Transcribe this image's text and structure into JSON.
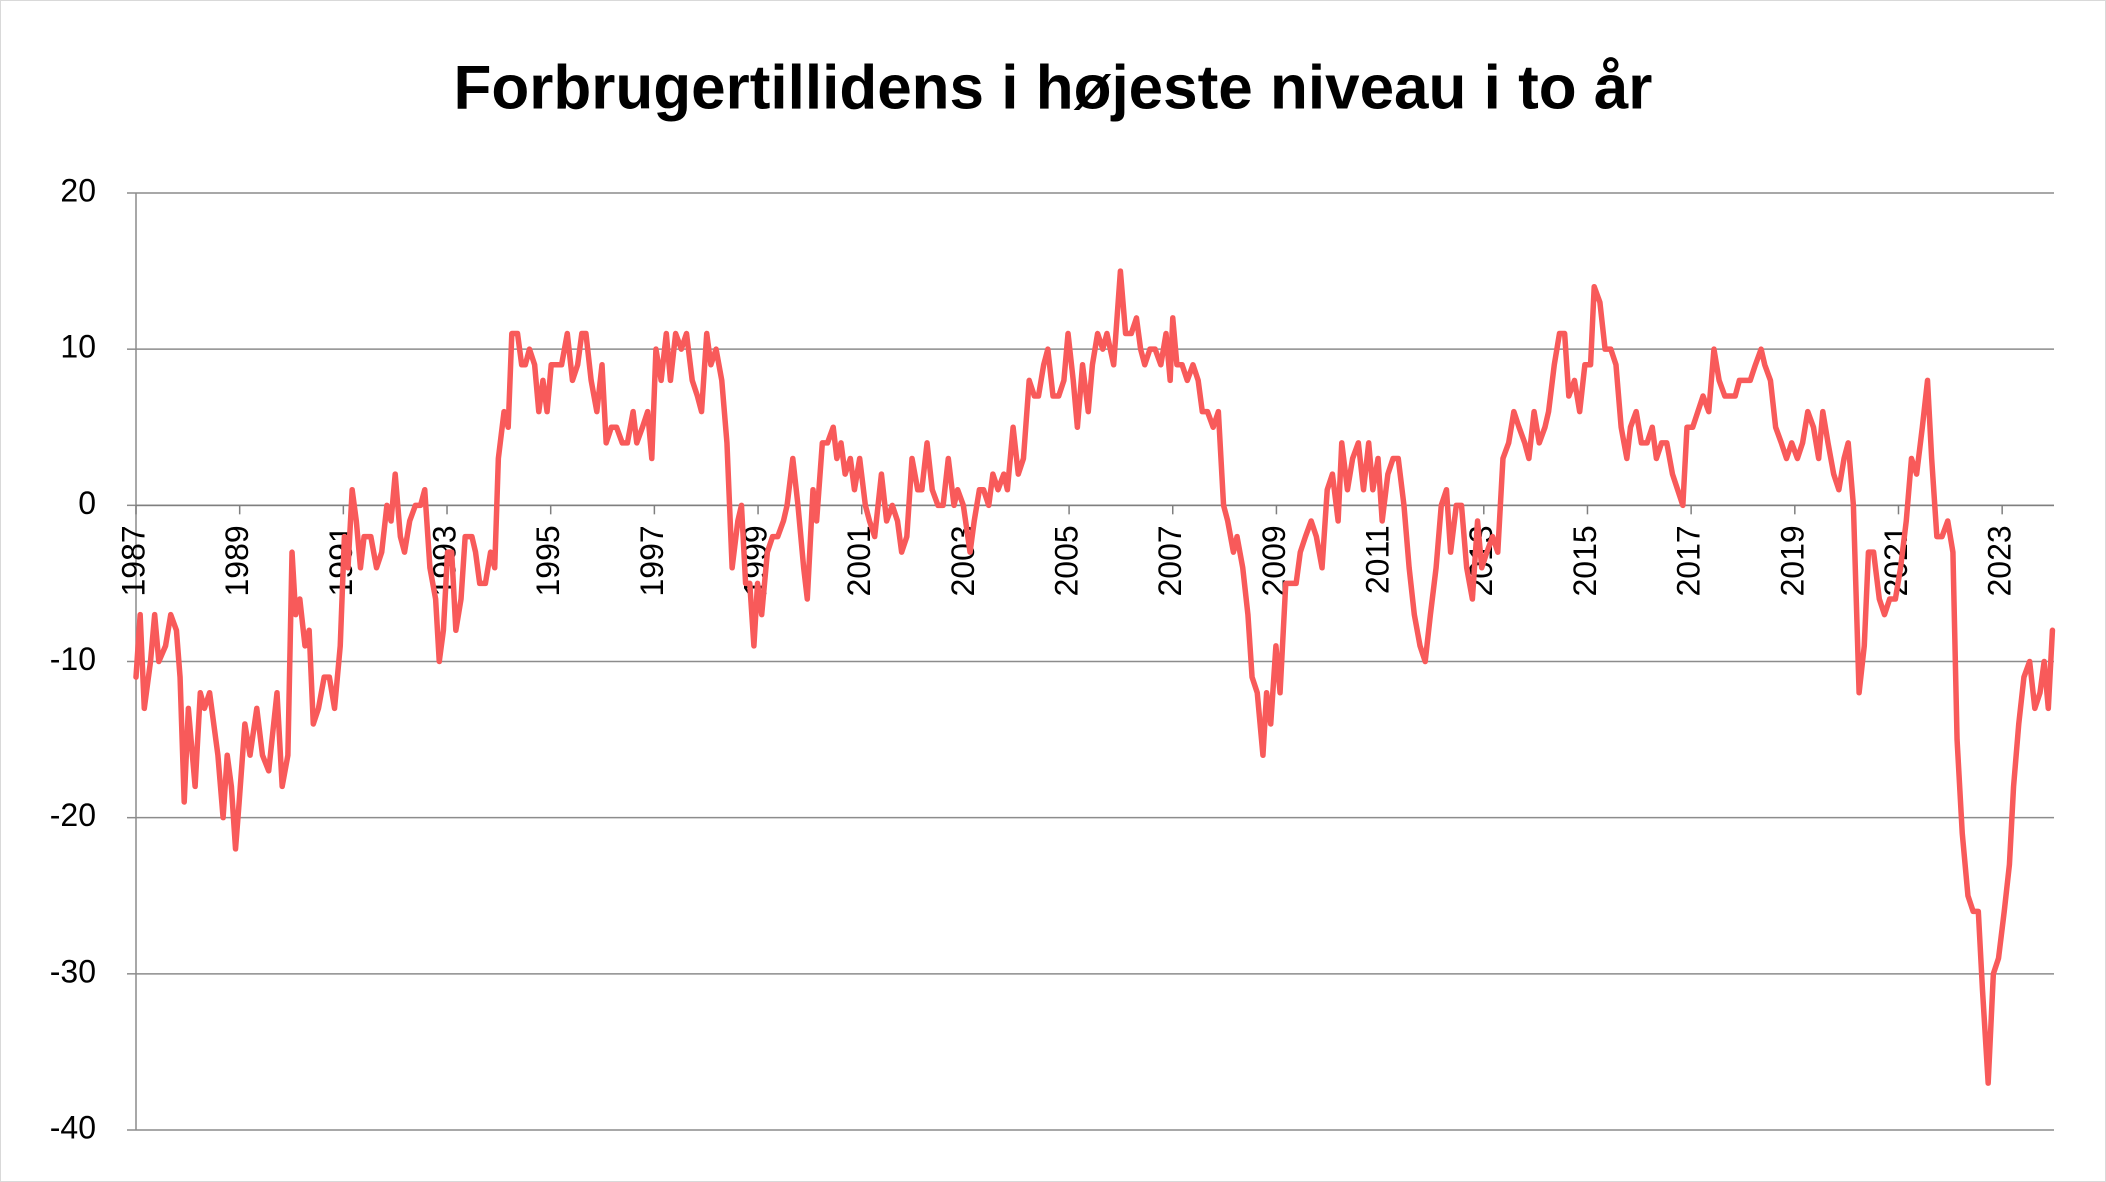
{
  "chart_data": {
    "type": "line",
    "title": "Forbrugertillidens i højeste niveau i to år",
    "x": [
      1987,
      1987.08,
      1987.16,
      1987.28,
      1987.36,
      1987.44,
      1987.57,
      1987.67,
      1987.78,
      1987.85,
      1987.93,
      1988.01,
      1988.14,
      1988.24,
      1988.32,
      1988.42,
      1988.58,
      1988.68,
      1988.76,
      1988.84,
      1988.92,
      1988.99,
      1989.1,
      1989.2,
      1989.33,
      1989.44,
      1989.56,
      1989.72,
      1989.82,
      1989.93,
      1990.01,
      1990.08,
      1990.16,
      1990.26,
      1990.34,
      1990.42,
      1990.52,
      1990.63,
      1990.73,
      1990.83,
      1990.94,
      1991.02,
      1991.09,
      1991.17,
      1991.25,
      1991.33,
      1991.4,
      1991.53,
      1991.64,
      1991.74,
      1991.84,
      1991.92,
      1992.0,
      1992.1,
      1992.18,
      1992.28,
      1992.39,
      1992.49,
      1992.57,
      1992.67,
      1992.78,
      1992.85,
      1992.93,
      1993.01,
      1993.09,
      1993.17,
      1993.27,
      1993.35,
      1993.48,
      1993.55,
      1993.63,
      1993.74,
      1993.84,
      1993.92,
      1993.99,
      1994.1,
      1994.18,
      1994.25,
      1994.36,
      1994.44,
      1994.51,
      1994.59,
      1994.69,
      1994.77,
      1994.85,
      1994.93,
      1995.01,
      1995.11,
      1995.21,
      1995.32,
      1995.42,
      1995.52,
      1995.6,
      1995.68,
      1995.78,
      1995.89,
      1995.99,
      1996.07,
      1996.17,
      1996.27,
      1996.38,
      1996.48,
      1996.59,
      1996.66,
      1996.77,
      1996.87,
      1996.95,
      1997.03,
      1997.13,
      1997.23,
      1997.31,
      1997.41,
      1997.52,
      1997.62,
      1997.73,
      1997.83,
      1997.91,
      1998.01,
      1998.09,
      1998.19,
      1998.3,
      1998.4,
      1998.5,
      1998.61,
      1998.68,
      1998.76,
      1998.84,
      1998.92,
      1998.99,
      1999.07,
      1999.18,
      1999.28,
      1999.38,
      1999.49,
      1999.56,
      1999.67,
      1999.77,
      1999.88,
      1999.95,
      2000.06,
      2000.13,
      2000.24,
      2000.34,
      2000.45,
      2000.52,
      2000.6,
      2000.68,
      2000.78,
      2000.86,
      2000.96,
      2001.07,
      2001.15,
      2001.25,
      2001.38,
      2001.48,
      2001.59,
      2001.69,
      2001.77,
      2001.87,
      2001.97,
      2002.08,
      2002.16,
      2002.26,
      2002.36,
      2002.47,
      2002.57,
      2002.67,
      2002.78,
      2002.85,
      2002.96,
      2003.09,
      2003.17,
      2003.27,
      2003.35,
      2003.45,
      2003.53,
      2003.63,
      2003.74,
      2003.81,
      2003.92,
      2004.02,
      2004.12,
      2004.23,
      2004.33,
      2004.41,
      2004.51,
      2004.59,
      2004.69,
      2004.8,
      2004.9,
      2004.98,
      2005.08,
      2005.16,
      2005.26,
      2005.37,
      2005.45,
      2005.55,
      2005.65,
      2005.73,
      2005.86,
      2005.99,
      2006.09,
      2006.2,
      2006.3,
      2006.38,
      2006.46,
      2006.56,
      2006.66,
      2006.77,
      2006.87,
      2006.95,
      2007.0,
      2007.08,
      2007.18,
      2007.28,
      2007.39,
      2007.49,
      2007.57,
      2007.67,
      2007.78,
      2007.88,
      2007.98,
      2008.06,
      2008.17,
      2008.24,
      2008.35,
      2008.45,
      2008.53,
      2008.63,
      2008.74,
      2008.81,
      2008.89,
      2008.99,
      2009.07,
      2009.18,
      2009.28,
      2009.38,
      2009.46,
      2009.56,
      2009.67,
      2009.77,
      2009.88,
      2009.98,
      2010.08,
      2010.19,
      2010.26,
      2010.37,
      2010.47,
      2010.58,
      2010.68,
      2010.78,
      2010.86,
      2010.96,
      2011.04,
      2011.15,
      2011.25,
      2011.35,
      2011.46,
      2011.56,
      2011.66,
      2011.77,
      2011.87,
      2011.97,
      2012.08,
      2012.18,
      2012.28,
      2012.36,
      2012.47,
      2012.57,
      2012.67,
      2012.78,
      2012.88,
      2012.96,
      2013.06,
      2013.17,
      2013.27,
      2013.37,
      2013.48,
      2013.58,
      2013.68,
      2013.79,
      2013.87,
      2013.97,
      2014.07,
      2014.18,
      2014.25,
      2014.36,
      2014.46,
      2014.56,
      2014.64,
      2014.75,
      2014.85,
      2014.95,
      2015.06,
      2015.13,
      2015.24,
      2015.34,
      2015.45,
      2015.55,
      2015.65,
      2015.76,
      2015.83,
      2015.94,
      2016.04,
      2016.15,
      2016.25,
      2016.33,
      2016.43,
      2016.53,
      2016.64,
      2016.74,
      2016.84,
      2016.92,
      2017.03,
      2017.13,
      2017.23,
      2017.34,
      2017.44,
      2017.54,
      2017.65,
      2017.75,
      2017.85,
      2017.93,
      2018.04,
      2018.14,
      2018.24,
      2018.35,
      2018.42,
      2018.53,
      2018.63,
      2018.74,
      2018.84,
      2018.94,
      2019.05,
      2019.15,
      2019.25,
      2019.36,
      2019.46,
      2019.54,
      2019.64,
      2019.75,
      2019.85,
      2019.95,
      2020.03,
      2020.13,
      2020.24,
      2020.34,
      2020.42,
      2020.52,
      2020.63,
      2020.73,
      2020.83,
      2020.94,
      2021.04,
      2021.15,
      2021.25,
      2021.35,
      2021.46,
      2021.56,
      2021.64,
      2021.74,
      2021.84,
      2021.95,
      2022.05,
      2022.13,
      2022.23,
      2022.34,
      2022.44,
      2022.54,
      2022.62,
      2022.73,
      2022.83,
      2022.93,
      2023.04,
      2023.14,
      2023.22,
      2023.32,
      2023.42,
      2023.53,
      2023.63,
      2023.73,
      2023.81,
      2023.89,
      2023.97
    ],
    "values": [
      -11,
      -7,
      -13,
      -10,
      -7,
      -10,
      -9,
      -7,
      -8,
      -11,
      -19,
      -13,
      -18,
      -12,
      -13,
      -12,
      -16,
      -20,
      -16,
      -18,
      -22,
      -19,
      -14,
      -16,
      -13,
      -16,
      -17,
      -12,
      -18,
      -16,
      -3,
      -7,
      -6,
      -9,
      -8,
      -14,
      -13,
      -11,
      -11,
      -13,
      -9,
      -2,
      -4,
      1,
      -1,
      -4,
      -2,
      -2,
      -4,
      -3,
      0,
      -1,
      2,
      -2,
      -3,
      -1,
      0,
      0,
      1,
      -4,
      -6,
      -10,
      -8,
      -3,
      -3,
      -8,
      -6,
      -2,
      -2,
      -3,
      -5,
      -5,
      -3,
      -4,
      3,
      6,
      5,
      11,
      11,
      9,
      9,
      10,
      9,
      6,
      8,
      6,
      9,
      9,
      9,
      11,
      8,
      9,
      11,
      11,
      8,
      6,
      9,
      4,
      5,
      5,
      4,
      4,
      6,
      4,
      5,
      6,
      3,
      10,
      8,
      11,
      8,
      11,
      10,
      11,
      8,
      7,
      6,
      11,
      9,
      10,
      8,
      4,
      -4,
      -1,
      0,
      -5,
      -5,
      -9,
      -5,
      -7,
      -3,
      -2,
      -2,
      -1,
      0,
      3,
      0,
      -4,
      -6,
      1,
      -1,
      4,
      4,
      5,
      3,
      4,
      2,
      3,
      1,
      3,
      0,
      -1,
      -2,
      2,
      -1,
      0,
      -1,
      -3,
      -2,
      3,
      1,
      1,
      4,
      1,
      0,
      0,
      3,
      0,
      1,
      0,
      -3,
      -1,
      1,
      1,
      0,
      2,
      1,
      2,
      1,
      5,
      2,
      3,
      8,
      7,
      7,
      9,
      10,
      7,
      7,
      8,
      11,
      8,
      5,
      9,
      6,
      9,
      11,
      10,
      11,
      9,
      15,
      11,
      11,
      12,
      10,
      9,
      10,
      10,
      9,
      11,
      8,
      12,
      9,
      9,
      8,
      9,
      8,
      6,
      6,
      5,
      6,
      0,
      -1,
      -3,
      -2,
      -4,
      -7,
      -11,
      -12,
      -16,
      -12,
      -14,
      -9,
      -12,
      -5,
      -5,
      -5,
      -3,
      -2,
      -1,
      -2,
      -4,
      1,
      2,
      -1,
      4,
      1,
      3,
      4,
      1,
      4,
      1,
      3,
      -1,
      2,
      3,
      3,
      0,
      -4,
      -7,
      -9,
      -10,
      -7,
      -4,
      0,
      1,
      -3,
      0,
      0,
      -4,
      -6,
      -1,
      -4,
      -3,
      -2,
      -3,
      3,
      4,
      6,
      5,
      4,
      3,
      6,
      4,
      5,
      6,
      9,
      11,
      11,
      7,
      8,
      6,
      9,
      9,
      14,
      13,
      10,
      10,
      9,
      5,
      3,
      5,
      6,
      4,
      4,
      5,
      3,
      4,
      4,
      2,
      1,
      0,
      5,
      5,
      6,
      7,
      6,
      10,
      8,
      7,
      7,
      7,
      8,
      8,
      8,
      9,
      10,
      9,
      8,
      5,
      4,
      3,
      4,
      3,
      4,
      6,
      5,
      3,
      6,
      4,
      2,
      1,
      3,
      4,
      0,
      -12,
      -9,
      -3,
      -3,
      -6,
      -7,
      -6,
      -6,
      -4,
      -1,
      3,
      2,
      5,
      8,
      3,
      -2,
      -2,
      -1,
      -3,
      -15,
      -21,
      -25,
      -26,
      -26,
      -31,
      -37,
      -30,
      -29,
      -26,
      -23,
      -18,
      -14,
      -11,
      -10,
      -13,
      -12,
      -10,
      -13,
      -8
    ],
    "color": "#f85a5a",
    "xlim": [
      1987,
      2024
    ],
    "xticks": [
      1987,
      1989,
      1991,
      1993,
      1995,
      1997,
      1999,
      2001,
      2003,
      2005,
      2007,
      2009,
      2011,
      2013,
      2015,
      2017,
      2019,
      2021,
      2023
    ],
    "ylim": [
      -40,
      20
    ],
    "yticks": [
      -40,
      -30,
      -20,
      -10,
      0,
      10,
      20
    ],
    "grid": true
  }
}
